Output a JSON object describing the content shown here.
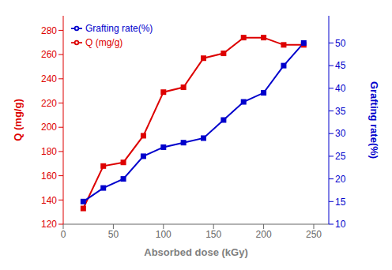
{
  "chart_data": {
    "type": "line",
    "xlabel": "Absorbed dose (kGy)",
    "ylabel": "Q (mg/g)",
    "y2label": "Grafting rate(%)",
    "x": [
      20,
      40,
      60,
      80,
      100,
      120,
      140,
      160,
      180,
      200,
      220,
      240
    ],
    "series": [
      {
        "name": "Q (mg/g)",
        "color": "#dd0000",
        "marker": "square",
        "values": [
          133,
          168,
          171,
          193,
          229,
          233,
          257,
          261,
          274,
          274,
          268,
          268
        ]
      },
      {
        "name": "Grafting rate(%)",
        "color": "#0000cc",
        "marker": "square",
        "axis": "y2",
        "values": [
          15,
          18,
          20,
          25,
          27,
          28,
          29,
          33,
          37,
          39,
          45,
          50
        ]
      }
    ],
    "xlim": [
      0,
      265
    ],
    "xticks": [
      0,
      50,
      100,
      150,
      200,
      250
    ],
    "ylim": [
      120,
      292
    ],
    "yticks": [
      120,
      140,
      160,
      180,
      200,
      220,
      240,
      260,
      280
    ],
    "y2lim": [
      10,
      56
    ],
    "y2ticks": [
      10,
      15,
      20,
      25,
      30,
      35,
      40,
      45,
      50
    ],
    "grid": false,
    "legend": "upper left"
  }
}
